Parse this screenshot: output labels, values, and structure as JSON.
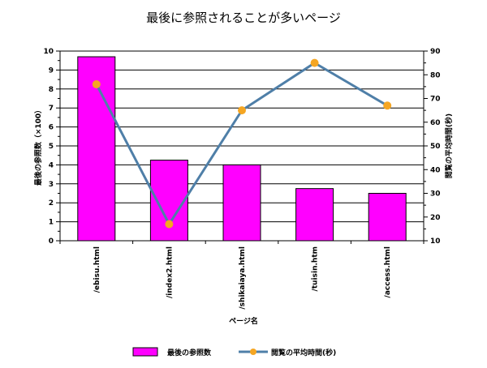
{
  "chart_data": {
    "type": "bar",
    "title": "最後に参照されることが多いページ",
    "xlabel": "ページ名",
    "ylabel": "最後の参照数（×100）",
    "y2label": "閲覧の平均時間(秒)",
    "categories": [
      "/ebisu.html",
      "/index2.html",
      "/shikaiaya.html",
      "/tuisin.htm",
      "/access.html"
    ],
    "ylim": [
      0,
      10
    ],
    "y2lim": [
      10,
      90
    ],
    "yticks": [
      "0",
      "1",
      "2",
      "3",
      "4",
      "5",
      "6",
      "7",
      "8",
      "9",
      "10"
    ],
    "y2ticks": [
      "10",
      "20",
      "30",
      "40",
      "50",
      "60",
      "70",
      "80",
      "90"
    ],
    "grid": true,
    "legend_position": "bottom",
    "series": [
      {
        "name": "最後の参照数",
        "type": "bar",
        "axis": "left",
        "color": "#FF00FF",
        "values": [
          9.7,
          4.25,
          4.0,
          2.75,
          2.5
        ]
      },
      {
        "name": "閲覧の平均時間(秒)",
        "type": "line",
        "axis": "right",
        "color": "#4F7FA8",
        "marker_color": "#F5A623",
        "values": [
          76,
          17,
          65,
          85,
          67
        ]
      }
    ]
  }
}
